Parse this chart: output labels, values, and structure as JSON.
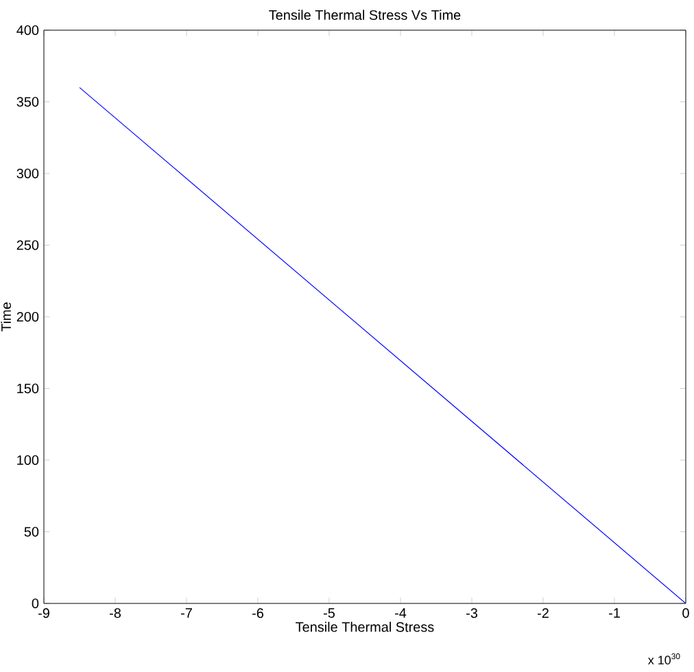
{
  "chart_data": {
    "type": "line",
    "title": "Tensile Thermal Stress Vs Time",
    "xlabel": "Tensile Thermal Stress",
    "ylabel": "Time",
    "x": [
      -8.5,
      0
    ],
    "series": [
      {
        "color": "#0000ff",
        "values": [
          360,
          0
        ]
      }
    ],
    "xlim": [
      -9,
      0
    ],
    "xticks": [
      -9,
      -8,
      -7,
      -6,
      -5,
      -4,
      -3,
      -2,
      -1,
      0
    ],
    "ylim": [
      0,
      400
    ],
    "yticks": [
      0,
      50,
      100,
      150,
      200,
      250,
      300,
      350,
      400
    ],
    "marker": "none",
    "line_style": "solid",
    "annotations": [
      "x 10$^{30}$"
    ]
  }
}
